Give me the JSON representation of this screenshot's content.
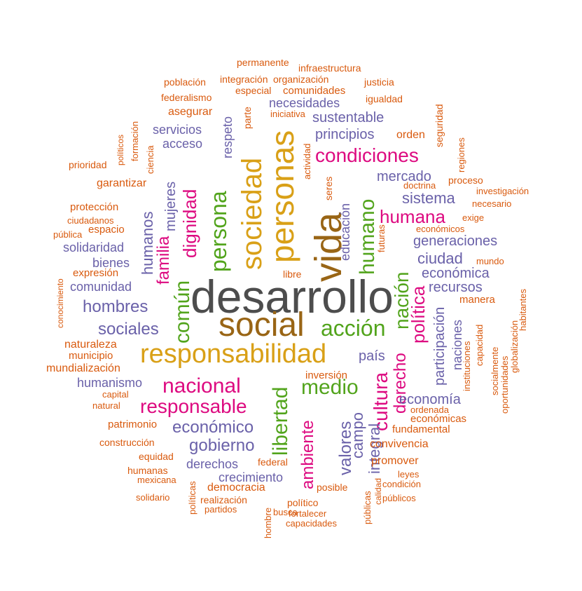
{
  "colors": {
    "gray": "#4d4d4d",
    "brown": "#996515",
    "gold": "#d9a017",
    "green": "#52a41c",
    "magenta": "#dd0a80",
    "purple": "#6a61a9",
    "orange": "#d95a0e"
  },
  "words": [
    {
      "text": "desarrollo",
      "color": "gray"
    },
    {
      "text": "social",
      "color": "brown"
    },
    {
      "text": "responsabilidad",
      "color": "gold"
    },
    {
      "text": "vida",
      "color": "brown"
    },
    {
      "text": "personas",
      "color": "gold"
    },
    {
      "text": "sociedad",
      "color": "gold"
    },
    {
      "text": "persona",
      "color": "green"
    },
    {
      "text": "acción",
      "color": "green"
    },
    {
      "text": "humano",
      "color": "green"
    },
    {
      "text": "medio",
      "color": "green"
    },
    {
      "text": "libertad",
      "color": "green"
    },
    {
      "text": "común",
      "color": "green"
    },
    {
      "text": "nación",
      "color": "green"
    },
    {
      "text": "nacional",
      "color": "magenta"
    },
    {
      "text": "responsable",
      "color": "magenta"
    },
    {
      "text": "condiciones",
      "color": "magenta"
    },
    {
      "text": "humana",
      "color": "magenta"
    },
    {
      "text": "política",
      "color": "magenta"
    },
    {
      "text": "cultura",
      "color": "magenta"
    },
    {
      "text": "derecho",
      "color": "magenta"
    },
    {
      "text": "ambiente",
      "color": "magenta"
    },
    {
      "text": "dignidad",
      "color": "magenta"
    },
    {
      "text": "familia",
      "color": "magenta"
    },
    {
      "text": "hombres",
      "color": "purple"
    },
    {
      "text": "sociales",
      "color": "purple"
    },
    {
      "text": "económico",
      "color": "purple"
    },
    {
      "text": "gobierno",
      "color": "purple"
    },
    {
      "text": "sistema",
      "color": "purple"
    },
    {
      "text": "generaciones",
      "color": "purple"
    },
    {
      "text": "ciudad",
      "color": "purple"
    },
    {
      "text": "económica",
      "color": "purple"
    },
    {
      "text": "recursos",
      "color": "purple"
    },
    {
      "text": "país",
      "color": "purple"
    },
    {
      "text": "economía",
      "color": "purple"
    },
    {
      "text": "principios",
      "color": "purple"
    },
    {
      "text": "sustentable",
      "color": "purple"
    },
    {
      "text": "necesidades",
      "color": "purple"
    },
    {
      "text": "mercado",
      "color": "purple"
    },
    {
      "text": "servicios",
      "color": "purple"
    },
    {
      "text": "acceso",
      "color": "purple"
    },
    {
      "text": "solidaridad",
      "color": "purple"
    },
    {
      "text": "bienes",
      "color": "purple"
    },
    {
      "text": "comunidad",
      "color": "purple"
    },
    {
      "text": "humanismo",
      "color": "purple"
    },
    {
      "text": "derechos",
      "color": "purple"
    },
    {
      "text": "crecimiento",
      "color": "purple"
    },
    {
      "text": "valores",
      "color": "purple"
    },
    {
      "text": "campo",
      "color": "purple"
    },
    {
      "text": "integral",
      "color": "purple"
    },
    {
      "text": "participación",
      "color": "purple"
    },
    {
      "text": "humanos",
      "color": "purple"
    },
    {
      "text": "mujeres",
      "color": "purple"
    },
    {
      "text": "respeto",
      "color": "purple"
    },
    {
      "text": "educación",
      "color": "purple"
    },
    {
      "text": "naciones",
      "color": "purple"
    },
    {
      "text": "permanente",
      "color": "orange"
    },
    {
      "text": "infraestructura",
      "color": "orange"
    },
    {
      "text": "población",
      "color": "orange"
    },
    {
      "text": "integración",
      "color": "orange"
    },
    {
      "text": "organización",
      "color": "orange"
    },
    {
      "text": "justicia",
      "color": "orange"
    },
    {
      "text": "federalismo",
      "color": "orange"
    },
    {
      "text": "especial",
      "color": "orange"
    },
    {
      "text": "comunidades",
      "color": "orange"
    },
    {
      "text": "igualdad",
      "color": "orange"
    },
    {
      "text": "asegurar",
      "color": "orange"
    },
    {
      "text": "parte",
      "color": "orange"
    },
    {
      "text": "iniciativa",
      "color": "orange"
    },
    {
      "text": "orden",
      "color": "orange"
    },
    {
      "text": "seguridad",
      "color": "orange"
    },
    {
      "text": "políticos",
      "color": "orange"
    },
    {
      "text": "formación",
      "color": "orange"
    },
    {
      "text": "prioridad",
      "color": "orange"
    },
    {
      "text": "ciencia",
      "color": "orange"
    },
    {
      "text": "actividad",
      "color": "orange"
    },
    {
      "text": "regiones",
      "color": "orange"
    },
    {
      "text": "garantizar",
      "color": "orange"
    },
    {
      "text": "seres",
      "color": "orange"
    },
    {
      "text": "doctrina",
      "color": "orange"
    },
    {
      "text": "proceso",
      "color": "orange"
    },
    {
      "text": "investigación",
      "color": "orange"
    },
    {
      "text": "necesario",
      "color": "orange"
    },
    {
      "text": "protección",
      "color": "orange"
    },
    {
      "text": "ciudadanos",
      "color": "orange"
    },
    {
      "text": "espacio",
      "color": "orange"
    },
    {
      "text": "pública",
      "color": "orange"
    },
    {
      "text": "exige",
      "color": "orange"
    },
    {
      "text": "económicos",
      "color": "orange"
    },
    {
      "text": "futuras",
      "color": "orange"
    },
    {
      "text": "mundo",
      "color": "orange"
    },
    {
      "text": "expresión",
      "color": "orange"
    },
    {
      "text": "libre",
      "color": "orange"
    },
    {
      "text": "conocimiento",
      "color": "orange"
    },
    {
      "text": "manera",
      "color": "orange"
    },
    {
      "text": "habitantes",
      "color": "orange"
    },
    {
      "text": "naturaleza",
      "color": "orange"
    },
    {
      "text": "municipio",
      "color": "orange"
    },
    {
      "text": "mundialización",
      "color": "orange"
    },
    {
      "text": "capacidad",
      "color": "orange"
    },
    {
      "text": "globalización",
      "color": "orange"
    },
    {
      "text": "instituciones",
      "color": "orange"
    },
    {
      "text": "socialmente",
      "color": "orange"
    },
    {
      "text": "oportunidades",
      "color": "orange"
    },
    {
      "text": "inversión",
      "color": "orange"
    },
    {
      "text": "capital",
      "color": "orange"
    },
    {
      "text": "natural",
      "color": "orange"
    },
    {
      "text": "ordenada",
      "color": "orange"
    },
    {
      "text": "económicas",
      "color": "orange"
    },
    {
      "text": "fundamental",
      "color": "orange"
    },
    {
      "text": "patrimonio",
      "color": "orange"
    },
    {
      "text": "construcción",
      "color": "orange"
    },
    {
      "text": "convivencia",
      "color": "orange"
    },
    {
      "text": "equidad",
      "color": "orange"
    },
    {
      "text": "promover",
      "color": "orange"
    },
    {
      "text": "federal",
      "color": "orange"
    },
    {
      "text": "humanas",
      "color": "orange"
    },
    {
      "text": "mexicana",
      "color": "orange"
    },
    {
      "text": "leyes",
      "color": "orange"
    },
    {
      "text": "condición",
      "color": "orange"
    },
    {
      "text": "democracia",
      "color": "orange"
    },
    {
      "text": "posible",
      "color": "orange"
    },
    {
      "text": "solidario",
      "color": "orange"
    },
    {
      "text": "políticas",
      "color": "orange"
    },
    {
      "text": "realización",
      "color": "orange"
    },
    {
      "text": "partidos",
      "color": "orange"
    },
    {
      "text": "político",
      "color": "orange"
    },
    {
      "text": "públicos",
      "color": "orange"
    },
    {
      "text": "calidad",
      "color": "orange"
    },
    {
      "text": "públicas",
      "color": "orange"
    },
    {
      "text": "busca",
      "color": "orange"
    },
    {
      "text": "fortalecer",
      "color": "orange"
    },
    {
      "text": "capacidades",
      "color": "orange"
    },
    {
      "text": "hombre",
      "color": "orange"
    }
  ]
}
